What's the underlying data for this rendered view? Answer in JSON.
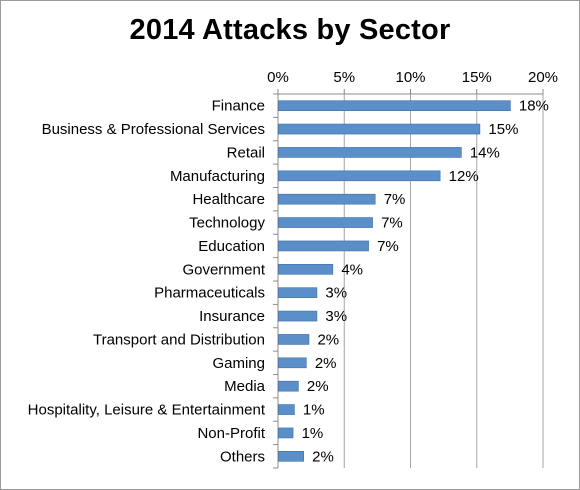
{
  "chart_data": {
    "type": "bar",
    "orientation": "horizontal",
    "title": "2014 Attacks by Sector",
    "xlabel": "",
    "ylabel": "",
    "xlim": [
      0,
      20
    ],
    "x_ticks": [
      "0%",
      "5%",
      "10%",
      "15%",
      "20%"
    ],
    "x_axis_position": "top",
    "grid": true,
    "legend": "none",
    "bar_color": "#5b8fc9",
    "bar_edge_color": "#3f6fa3",
    "categories": [
      "Finance",
      "Business & Professional Services",
      "Retail",
      "Manufacturing",
      "Healthcare",
      "Technology",
      "Education",
      "Government",
      "Pharmaceuticals",
      "Insurance",
      "Transport and Distribution",
      "Gaming",
      "Media",
      "Hospitality, Leisure & Entertainment",
      "Non-Profit",
      "Others"
    ],
    "values": [
      17.5,
      15.2,
      13.8,
      12.2,
      7.3,
      7.1,
      6.8,
      4.1,
      2.9,
      2.9,
      2.3,
      2.1,
      1.5,
      1.2,
      1.1,
      1.9
    ],
    "data_labels": [
      "18%",
      "15%",
      "14%",
      "12%",
      "7%",
      "7%",
      "7%",
      "4%",
      "3%",
      "3%",
      "2%",
      "2%",
      "2%",
      "1%",
      "1%",
      "2%"
    ]
  }
}
